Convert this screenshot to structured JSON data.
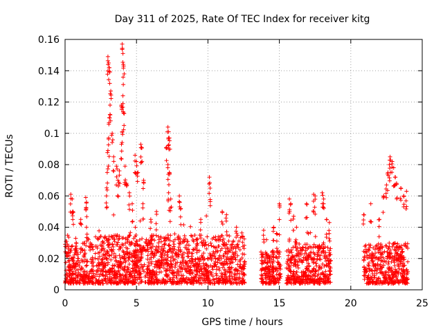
{
  "chart_data": {
    "type": "scatter",
    "title": "Day 311 of 2025, Rate Of TEC Index for receiver kitg",
    "xlabel": "GPS time / hours",
    "ylabel": "ROTI / TECUs",
    "xlim": [
      0,
      25
    ],
    "ylim": [
      0,
      0.16
    ],
    "xticks": [
      0,
      5,
      10,
      15,
      20,
      25
    ],
    "xtick_labels": [
      "0",
      "5",
      "10",
      "15",
      "20",
      "25"
    ],
    "yticks": [
      0,
      0.02,
      0.04,
      0.06,
      0.08,
      0.1,
      0.12,
      0.14,
      0.16
    ],
    "ytick_labels": [
      "0",
      "0.02",
      "0.04",
      "0.06",
      "0.08",
      "0.1",
      "0.12",
      "0.14",
      "0.16"
    ],
    "grid": true,
    "marker": "+",
    "color": "#ff0000",
    "series": [
      {
        "name": "ROTI",
        "dense_segments": [
          {
            "x_start": 0.0,
            "x_end": 2.0,
            "y_min": 0.004,
            "y_max": 0.03
          },
          {
            "x_start": 2.1,
            "x_end": 12.6,
            "y_min": 0.004,
            "y_max": 0.035
          },
          {
            "x_start": 13.7,
            "x_end": 15.1,
            "y_min": 0.004,
            "y_max": 0.025
          },
          {
            "x_start": 15.5,
            "x_end": 18.6,
            "y_min": 0.004,
            "y_max": 0.03
          },
          {
            "x_start": 20.9,
            "x_end": 24.0,
            "y_min": 0.004,
            "y_max": 0.03
          }
        ],
        "peaks": [
          {
            "x": 0.1,
            "y": 0.031
          },
          {
            "x": 0.4,
            "y": 0.061
          },
          {
            "x": 0.5,
            "y": 0.058
          },
          {
            "x": 0.55,
            "y": 0.05
          },
          {
            "x": 1.1,
            "y": 0.045
          },
          {
            "x": 1.5,
            "y": 0.04
          },
          {
            "x": 1.45,
            "y": 0.059
          },
          {
            "x": 1.5,
            "y": 0.056
          },
          {
            "x": 2.9,
            "y": 0.06
          },
          {
            "x": 2.95,
            "y": 0.075
          },
          {
            "x": 3.0,
            "y": 0.089
          },
          {
            "x": 3.05,
            "y": 0.097
          },
          {
            "x": 3.1,
            "y": 0.11
          },
          {
            "x": 3.15,
            "y": 0.118
          },
          {
            "x": 3.2,
            "y": 0.127
          },
          {
            "x": 3.0,
            "y": 0.149
          },
          {
            "x": 3.05,
            "y": 0.145
          },
          {
            "x": 3.1,
            "y": 0.142
          },
          {
            "x": 3.3,
            "y": 0.1
          },
          {
            "x": 3.4,
            "y": 0.085
          },
          {
            "x": 3.6,
            "y": 0.079
          },
          {
            "x": 3.7,
            "y": 0.07
          },
          {
            "x": 3.8,
            "y": 0.076
          },
          {
            "x": 4.0,
            "y": 0.157
          },
          {
            "x": 4.05,
            "y": 0.151
          },
          {
            "x": 4.1,
            "y": 0.143
          },
          {
            "x": 4.05,
            "y": 0.124
          },
          {
            "x": 3.95,
            "y": 0.118
          },
          {
            "x": 4.1,
            "y": 0.113
          },
          {
            "x": 4.0,
            "y": 0.101
          },
          {
            "x": 3.95,
            "y": 0.093
          },
          {
            "x": 4.2,
            "y": 0.079
          },
          {
            "x": 4.3,
            "y": 0.068
          },
          {
            "x": 4.5,
            "y": 0.062
          },
          {
            "x": 4.7,
            "y": 0.055
          },
          {
            "x": 4.9,
            "y": 0.086
          },
          {
            "x": 5.0,
            "y": 0.082
          },
          {
            "x": 5.1,
            "y": 0.075
          },
          {
            "x": 5.3,
            "y": 0.093
          },
          {
            "x": 5.35,
            "y": 0.091
          },
          {
            "x": 5.5,
            "y": 0.07
          },
          {
            "x": 5.45,
            "y": 0.055
          },
          {
            "x": 6.0,
            "y": 0.045
          },
          {
            "x": 6.4,
            "y": 0.05
          },
          {
            "x": 7.2,
            "y": 0.104
          },
          {
            "x": 7.25,
            "y": 0.101
          },
          {
            "x": 7.3,
            "y": 0.097
          },
          {
            "x": 7.1,
            "y": 0.091
          },
          {
            "x": 7.2,
            "y": 0.08
          },
          {
            "x": 7.3,
            "y": 0.075
          },
          {
            "x": 7.25,
            "y": 0.062
          },
          {
            "x": 7.4,
            "y": 0.058
          },
          {
            "x": 8.0,
            "y": 0.06
          },
          {
            "x": 8.1,
            "y": 0.052
          },
          {
            "x": 9.5,
            "y": 0.045
          },
          {
            "x": 10.1,
            "y": 0.072
          },
          {
            "x": 10.15,
            "y": 0.065
          },
          {
            "x": 11.0,
            "y": 0.05
          },
          {
            "x": 11.3,
            "y": 0.048
          },
          {
            "x": 12.0,
            "y": 0.04
          },
          {
            "x": 13.9,
            "y": 0.038
          },
          {
            "x": 14.1,
            "y": 0.032
          },
          {
            "x": 14.6,
            "y": 0.04
          },
          {
            "x": 14.8,
            "y": 0.036
          },
          {
            "x": 15.0,
            "y": 0.055
          },
          {
            "x": 15.7,
            "y": 0.058
          },
          {
            "x": 15.8,
            "y": 0.055
          },
          {
            "x": 16.0,
            "y": 0.047
          },
          {
            "x": 16.2,
            "y": 0.04
          },
          {
            "x": 16.9,
            "y": 0.055
          },
          {
            "x": 17.4,
            "y": 0.061
          },
          {
            "x": 17.5,
            "y": 0.06
          },
          {
            "x": 18.0,
            "y": 0.062
          },
          {
            "x": 18.1,
            "y": 0.058
          },
          {
            "x": 18.3,
            "y": 0.045
          },
          {
            "x": 18.5,
            "y": 0.043
          },
          {
            "x": 20.9,
            "y": 0.048
          },
          {
            "x": 21.4,
            "y": 0.055
          },
          {
            "x": 22.0,
            "y": 0.045
          },
          {
            "x": 22.3,
            "y": 0.06
          },
          {
            "x": 22.5,
            "y": 0.067
          },
          {
            "x": 22.6,
            "y": 0.075
          },
          {
            "x": 22.7,
            "y": 0.08
          },
          {
            "x": 22.75,
            "y": 0.085
          },
          {
            "x": 22.9,
            "y": 0.082
          },
          {
            "x": 23.0,
            "y": 0.078
          },
          {
            "x": 23.1,
            "y": 0.072
          },
          {
            "x": 23.2,
            "y": 0.068
          },
          {
            "x": 23.5,
            "y": 0.065
          },
          {
            "x": 23.7,
            "y": 0.06
          },
          {
            "x": 23.9,
            "y": 0.063
          }
        ]
      }
    ]
  }
}
